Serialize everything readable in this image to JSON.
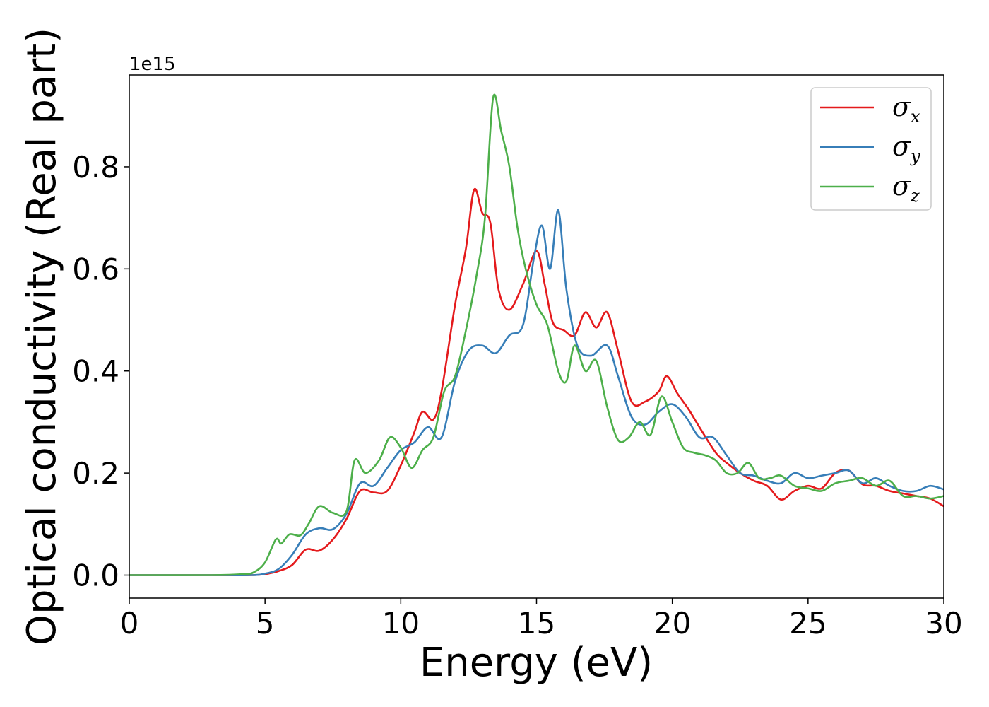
{
  "chart_data": {
    "type": "line",
    "title": "",
    "xlabel": "Energy (eV)",
    "ylabel": "Optical conductivity (Real part)",
    "y_offset_label": "1e15",
    "xlim": [
      0,
      30
    ],
    "ylim": [
      -0.045,
      0.98
    ],
    "xticks": [
      0,
      5,
      10,
      15,
      20,
      25,
      30
    ],
    "xtick_labels": [
      "0",
      "5",
      "10",
      "15",
      "20",
      "25",
      "30"
    ],
    "yticks": [
      0.0,
      0.2,
      0.4,
      0.6,
      0.8
    ],
    "ytick_labels": [
      "0.0",
      "0.2",
      "0.4",
      "0.6",
      "0.8"
    ],
    "grid": false,
    "legend_position": "top-right",
    "series": [
      {
        "name": "σx",
        "symbol": "σ",
        "subscript": "x",
        "color": "#e41a1c",
        "x": [
          0,
          3,
          4.5,
          5,
          5.5,
          6,
          6.5,
          7,
          7.5,
          8,
          8.5,
          9,
          9.5,
          10,
          10.5,
          10.8,
          11.2,
          11.5,
          12,
          12.4,
          12.7,
          13.0,
          13.3,
          13.6,
          14.0,
          14.5,
          15.0,
          15.3,
          15.6,
          16.0,
          16.4,
          16.8,
          17.2,
          17.6,
          18.0,
          18.5,
          19.0,
          19.5,
          19.8,
          20.2,
          20.6,
          21.0,
          21.6,
          22.0,
          22.5,
          23.0,
          23.5,
          24.0,
          24.5,
          25.0,
          25.5,
          26.0,
          26.5,
          27.0,
          27.5,
          28.0,
          28.5,
          29.0,
          29.5,
          30.0
        ],
        "y": [
          0.0,
          0.0,
          0.0,
          0.002,
          0.008,
          0.02,
          0.05,
          0.048,
          0.07,
          0.11,
          0.165,
          0.162,
          0.165,
          0.215,
          0.28,
          0.32,
          0.305,
          0.36,
          0.53,
          0.64,
          0.755,
          0.71,
          0.69,
          0.56,
          0.52,
          0.57,
          0.635,
          0.57,
          0.495,
          0.48,
          0.47,
          0.515,
          0.485,
          0.515,
          0.44,
          0.34,
          0.34,
          0.36,
          0.39,
          0.355,
          0.325,
          0.29,
          0.24,
          0.22,
          0.2,
          0.185,
          0.175,
          0.148,
          0.165,
          0.175,
          0.17,
          0.2,
          0.205,
          0.178,
          0.175,
          0.165,
          0.16,
          0.155,
          0.15,
          0.135
        ]
      },
      {
        "name": "σy",
        "symbol": "σ",
        "subscript": "y",
        "color": "#377eb8",
        "x": [
          0,
          3,
          4.5,
          5,
          5.5,
          6,
          6.5,
          7,
          7.5,
          8,
          8.5,
          9,
          9.5,
          10,
          10.5,
          11.0,
          11.5,
          12,
          12.5,
          13.0,
          13.5,
          14.0,
          14.5,
          14.9,
          15.2,
          15.5,
          15.8,
          16.1,
          16.5,
          17.0,
          17.6,
          18.0,
          18.5,
          19.0,
          19.5,
          20.0,
          20.5,
          21.0,
          21.5,
          22.0,
          22.5,
          23.0,
          23.5,
          24.0,
          24.5,
          25.0,
          25.5,
          26.0,
          26.5,
          27.0,
          27.5,
          28.0,
          28.5,
          29.0,
          29.5,
          30.0
        ],
        "y": [
          0.0,
          0.0,
          0.0,
          0.003,
          0.012,
          0.04,
          0.08,
          0.092,
          0.09,
          0.12,
          0.18,
          0.175,
          0.21,
          0.245,
          0.26,
          0.29,
          0.27,
          0.38,
          0.44,
          0.45,
          0.435,
          0.47,
          0.49,
          0.62,
          0.685,
          0.6,
          0.715,
          0.56,
          0.45,
          0.43,
          0.45,
          0.39,
          0.31,
          0.295,
          0.32,
          0.335,
          0.31,
          0.27,
          0.27,
          0.235,
          0.2,
          0.195,
          0.185,
          0.18,
          0.2,
          0.19,
          0.195,
          0.2,
          0.205,
          0.18,
          0.19,
          0.175,
          0.165,
          0.165,
          0.175,
          0.168
        ]
      },
      {
        "name": "σz",
        "symbol": "σ",
        "subscript": "z",
        "color": "#4daf4a",
        "x": [
          0,
          3,
          4.2,
          4.6,
          5.0,
          5.4,
          5.6,
          5.9,
          6.3,
          6.6,
          7.0,
          7.5,
          8.0,
          8.3,
          8.7,
          9.2,
          9.6,
          10.0,
          10.4,
          10.8,
          11.2,
          11.6,
          12.0,
          12.4,
          12.8,
          13.1,
          13.4,
          13.7,
          14.0,
          14.3,
          14.6,
          15.0,
          15.4,
          15.8,
          16.1,
          16.4,
          16.8,
          17.2,
          17.6,
          18.0,
          18.4,
          18.8,
          19.2,
          19.6,
          20.0,
          20.4,
          20.8,
          21.2,
          21.6,
          22.0,
          22.4,
          22.8,
          23.2,
          23.6,
          24.0,
          24.5,
          25.0,
          25.5,
          26.0,
          26.5,
          27.0,
          27.5,
          28.0,
          28.5,
          29.0,
          29.5,
          30.0
        ],
        "y": [
          0.0,
          0.0,
          0.002,
          0.006,
          0.025,
          0.07,
          0.062,
          0.08,
          0.078,
          0.1,
          0.135,
          0.122,
          0.125,
          0.225,
          0.2,
          0.225,
          0.27,
          0.25,
          0.21,
          0.245,
          0.27,
          0.36,
          0.39,
          0.48,
          0.59,
          0.7,
          0.935,
          0.87,
          0.8,
          0.68,
          0.6,
          0.53,
          0.49,
          0.4,
          0.38,
          0.45,
          0.4,
          0.42,
          0.33,
          0.265,
          0.27,
          0.3,
          0.275,
          0.35,
          0.3,
          0.25,
          0.24,
          0.235,
          0.225,
          0.2,
          0.2,
          0.22,
          0.19,
          0.19,
          0.195,
          0.175,
          0.17,
          0.165,
          0.18,
          0.185,
          0.19,
          0.175,
          0.185,
          0.155,
          0.155,
          0.15,
          0.155
        ]
      }
    ]
  }
}
